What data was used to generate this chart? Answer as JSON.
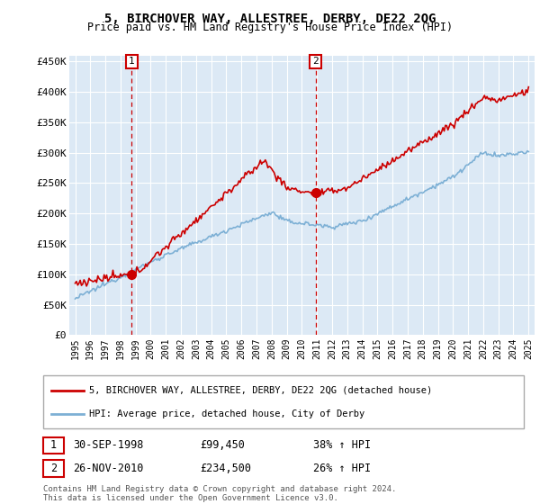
{
  "title": "5, BIRCHOVER WAY, ALLESTREE, DERBY, DE22 2QG",
  "subtitle": "Price paid vs. HM Land Registry's House Price Index (HPI)",
  "plot_bg_color": "#dce9f5",
  "ylabel_ticks": [
    "£0",
    "£50K",
    "£100K",
    "£150K",
    "£200K",
    "£250K",
    "£300K",
    "£350K",
    "£400K",
    "£450K"
  ],
  "ytick_values": [
    0,
    50000,
    100000,
    150000,
    200000,
    250000,
    300000,
    350000,
    400000,
    450000
  ],
  "marker1_year": 1998.75,
  "marker1_value": 99450,
  "marker2_year": 2010.9,
  "marker2_value": 234500,
  "marker1_date": "30-SEP-1998",
  "marker1_price": "£99,450",
  "marker1_hpi": "38% ↑ HPI",
  "marker2_date": "26-NOV-2010",
  "marker2_price": "£234,500",
  "marker2_hpi": "26% ↑ HPI",
  "legend_line1": "5, BIRCHOVER WAY, ALLESTREE, DERBY, DE22 2QG (detached house)",
  "legend_line2": "HPI: Average price, detached house, City of Derby",
  "footer": "Contains HM Land Registry data © Crown copyright and database right 2024.\nThis data is licensed under the Open Government Licence v3.0.",
  "price_paid_color": "#cc0000",
  "hpi_color": "#7db0d5",
  "vline_color": "#cc0000"
}
